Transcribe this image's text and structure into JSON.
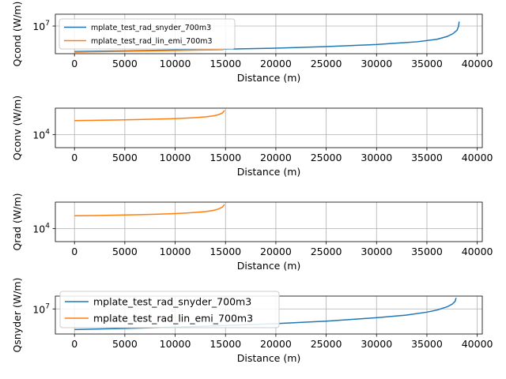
{
  "colors": {
    "snyder": "#1f77b4",
    "lin_emi": "#ff7f0e",
    "grid": "#b0b0b0",
    "axes": "#000000"
  },
  "chart_data": [
    {
      "type": "line",
      "xlabel": "Distance (m)",
      "ylabel": "Qcond (W/m)",
      "yscale": "log",
      "grid": true,
      "legend": "upper-left",
      "xlim": [
        -1900,
        40500
      ],
      "ylim": [
        4200000,
        14500000
      ],
      "xticks": [
        0,
        5000,
        10000,
        15000,
        20000,
        25000,
        30000,
        35000,
        40000
      ],
      "yticks": [
        {
          "value": 10000000,
          "base": "10",
          "exp": "7"
        }
      ],
      "series": [
        {
          "name": "mplate_test_rad_snyder_700m3",
          "color_key": "snyder",
          "x": [
            0,
            5000,
            10000,
            15000,
            20000,
            25000,
            30000,
            34000,
            36000,
            37000,
            37600,
            38000,
            38150,
            38200
          ],
          "y": [
            4500000,
            4600000,
            4720000,
            4850000,
            5000000,
            5250000,
            5600000,
            6100000,
            6600000,
            7200000,
            7900000,
            8800000,
            10000000,
            11500000
          ]
        },
        {
          "name": "mplate_test_rad_lin_emi_700m3",
          "color_key": "lin_emi",
          "x": [
            0,
            2000,
            5000,
            8000,
            10000,
            12000,
            14000,
            14800
          ],
          "y": [
            4400000,
            4450000,
            4520000,
            4590000,
            4640000,
            4690000,
            4740000,
            4770000
          ]
        }
      ]
    },
    {
      "type": "line",
      "xlabel": "Distance (m)",
      "ylabel": "Qconv (W/m)",
      "yscale": "log",
      "grid": true,
      "legend": "",
      "xlim": [
        -1900,
        40500
      ],
      "ylim": [
        5600,
        32000
      ],
      "xticks": [
        0,
        5000,
        10000,
        15000,
        20000,
        25000,
        30000,
        35000,
        40000
      ],
      "yticks": [
        {
          "value": 10000,
          "base": "10",
          "exp": "4"
        }
      ],
      "series": [
        {
          "name": "mplate_test_rad_lin_emi_700m3",
          "color_key": "lin_emi",
          "x": [
            0,
            2000,
            4000,
            6000,
            8000,
            10000,
            11000,
            12000,
            13000,
            13800,
            14300,
            14700,
            14900
          ],
          "y": [
            18500,
            18700,
            19000,
            19300,
            19700,
            20200,
            20600,
            21100,
            21800,
            22800,
            24000,
            26000,
            29000
          ]
        }
      ]
    },
    {
      "type": "line",
      "xlabel": "Distance (m)",
      "ylabel": "Qrad (W/m)",
      "yscale": "log",
      "grid": true,
      "legend": "",
      "xlim": [
        -1900,
        40500
      ],
      "ylim": [
        5600,
        32000
      ],
      "xticks": [
        0,
        5000,
        10000,
        15000,
        20000,
        25000,
        30000,
        35000,
        40000
      ],
      "yticks": [
        {
          "value": 10000,
          "base": "10",
          "exp": "4"
        }
      ],
      "series": [
        {
          "name": "mplate_test_rad_lin_emi_700m3",
          "color_key": "lin_emi",
          "x": [
            0,
            2000,
            4000,
            6000,
            8000,
            10000,
            11000,
            12000,
            13000,
            13800,
            14300,
            14700,
            14900
          ],
          "y": [
            17500,
            17700,
            18000,
            18300,
            18700,
            19300,
            19700,
            20300,
            21100,
            22200,
            23600,
            25800,
            29000
          ]
        }
      ]
    },
    {
      "type": "line",
      "xlabel": "Distance (m)",
      "ylabel": "Qsnyder (W/m)",
      "yscale": "log",
      "grid": true,
      "legend": "upper-left",
      "xlim": [
        -1900,
        40500
      ],
      "ylim": [
        4000000,
        16000000
      ],
      "xticks": [
        0,
        5000,
        10000,
        15000,
        20000,
        25000,
        30000,
        35000,
        40000
      ],
      "yticks": [
        {
          "value": 10000000,
          "base": "10",
          "exp": "7"
        }
      ],
      "series": [
        {
          "name": "mplate_test_rad_snyder_700m3",
          "color_key": "snyder",
          "x": [
            0,
            5000,
            10000,
            15000,
            20000,
            25000,
            30000,
            33000,
            35000,
            36000,
            37000,
            37500,
            37800,
            37900
          ],
          "y": [
            4700000,
            4900000,
            5150000,
            5450000,
            5850000,
            6400000,
            7250000,
            8000000,
            8900000,
            9600000,
            10800000,
            11900000,
            13200000,
            15000000
          ]
        },
        {
          "name": "mplate_test_rad_lin_emi_700m3",
          "color_key": "lin_emi",
          "x": [],
          "y": []
        }
      ]
    }
  ]
}
